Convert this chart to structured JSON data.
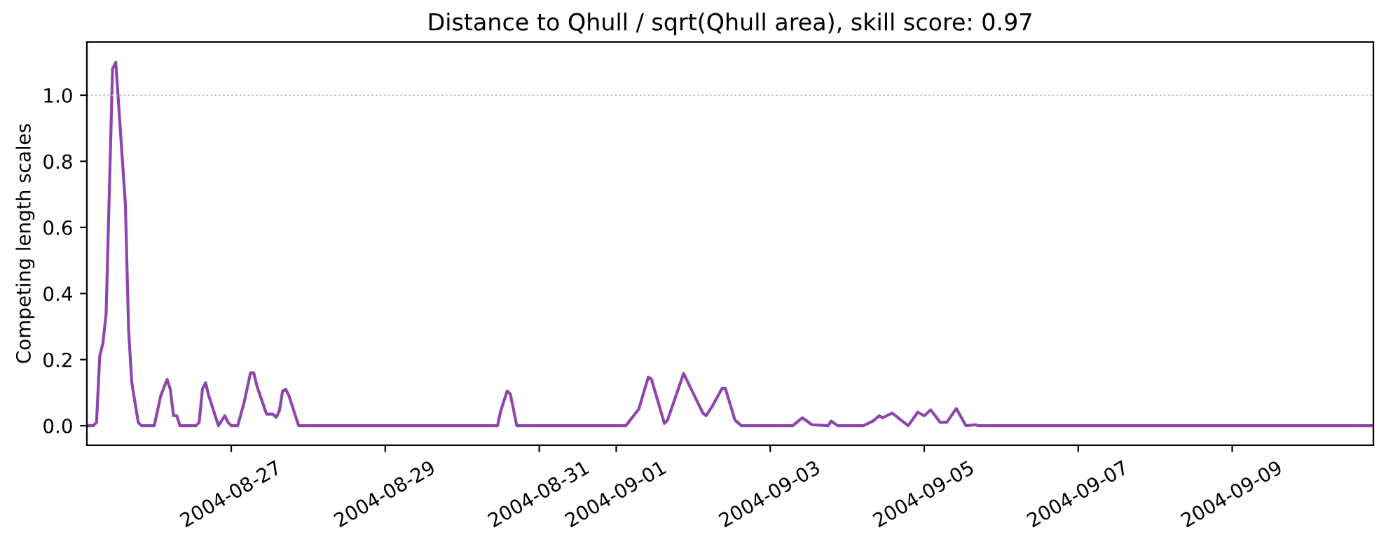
{
  "chart_data": {
    "type": "line",
    "title": "Distance to Qhull / sqrt(Qhull area), skill score: 0.97",
    "ylabel": "Competing length scales",
    "x": [
      "2004-08-25T03:00",
      "2004-08-25T05:00",
      "2004-08-25T06:00",
      "2004-08-25T07:00",
      "2004-08-25T08:00",
      "2004-08-25T09:00",
      "2004-08-25T11:00",
      "2004-08-25T12:00",
      "2004-08-25T15:00",
      "2004-08-25T16:00",
      "2004-08-25T17:00",
      "2004-08-25T19:00",
      "2004-08-25T20:00",
      "2004-08-26T00:00",
      "2004-08-26T02:00",
      "2004-08-26T04:00",
      "2004-08-26T05:00",
      "2004-08-26T06:00",
      "2004-08-26T07:00",
      "2004-08-26T08:00",
      "2004-08-26T13:00",
      "2004-08-26T14:00",
      "2004-08-26T15:00",
      "2004-08-26T16:00",
      "2004-08-26T17:00",
      "2004-08-26T20:00",
      "2004-08-26T22:00",
      "2004-08-26T23:00",
      "2004-08-27T00:00",
      "2004-08-27T02:00",
      "2004-08-27T04:00",
      "2004-08-27T06:00",
      "2004-08-27T07:00",
      "2004-08-27T08:00",
      "2004-08-27T11:00",
      "2004-08-27T13:00",
      "2004-08-27T14:00",
      "2004-08-27T15:00",
      "2004-08-27T16:00",
      "2004-08-27T17:00",
      "2004-08-27T18:00",
      "2004-08-27T21:00",
      "2004-08-30T11:00",
      "2004-08-30T12:00",
      "2004-08-30T14:00",
      "2004-08-30T15:00",
      "2004-08-30T17:00",
      "2004-09-01T03:00",
      "2004-09-01T07:00",
      "2004-09-01T10:00",
      "2004-09-01T11:00",
      "2004-09-01T15:00",
      "2004-09-01T16:00",
      "2004-09-01T21:00",
      "2004-09-02T03:00",
      "2004-09-02T04:00",
      "2004-09-02T06:00",
      "2004-09-02T09:00",
      "2004-09-02T10:00",
      "2004-09-02T13:00",
      "2004-09-02T15:00",
      "2004-09-03T07:00",
      "2004-09-03T10:00",
      "2004-09-03T13:00",
      "2004-09-03T18:00",
      "2004-09-03T19:00",
      "2004-09-03T21:00",
      "2004-09-04T05:00",
      "2004-09-04T08:00",
      "2004-09-04T10:00",
      "2004-09-04T11:00",
      "2004-09-04T14:00",
      "2004-09-04T19:00",
      "2004-09-04T22:00",
      "2004-09-05T00:00",
      "2004-09-05T02:00",
      "2004-09-05T05:00",
      "2004-09-05T07:00",
      "2004-09-05T08:00",
      "2004-09-05T10:00",
      "2004-09-05T13:00",
      "2004-09-05T16:00",
      "2004-09-05T17:00",
      "2004-09-10T20:00"
    ],
    "series": [
      {
        "color": "#8e44ad",
        "values": [
          0,
          0,
          0.01,
          0.21,
          0.25,
          0.34,
          1.08,
          1.1,
          0.67,
          0.29,
          0.13,
          0.01,
          0,
          0,
          0.09,
          0.14,
          0.11,
          0.03,
          0.03,
          0,
          0,
          0.01,
          0.11,
          0.13,
          0.09,
          0,
          0.03,
          0.01,
          0,
          0,
          0.07,
          0.16,
          0.16,
          0.12,
          0.035,
          0.035,
          0.025,
          0.045,
          0.105,
          0.11,
          0.09,
          0,
          0,
          0.045,
          0.105,
          0.095,
          0,
          0,
          0.05,
          0.147,
          0.14,
          0.007,
          0.017,
          0.158,
          0.038,
          0.03,
          0.06,
          0.113,
          0.113,
          0.017,
          0,
          0,
          0.024,
          0.003,
          0,
          0.014,
          0,
          0,
          0.014,
          0.03,
          0.024,
          0.038,
          0,
          0.041,
          0.03,
          0.048,
          0.01,
          0.01,
          0.024,
          0.052,
          0,
          0.003,
          0,
          0
        ]
      }
    ],
    "xlim": [
      "2004-08-25T03:00",
      "2004-09-10T20:00"
    ],
    "xticks": [
      "2004-08-27",
      "2004-08-29",
      "2004-08-31",
      "2004-09-01",
      "2004-09-03",
      "2004-09-05",
      "2004-09-07",
      "2004-09-09"
    ],
    "ylim": [
      -0.059,
      1.161
    ],
    "yticks": [
      {
        "value": 0,
        "label": "0.0"
      },
      {
        "value": 0.2,
        "label": "0.2"
      },
      {
        "value": 0.4,
        "label": "0.4"
      },
      {
        "value": 0.6,
        "label": "0.6"
      },
      {
        "value": 0.8,
        "label": "0.8"
      },
      {
        "value": 1.0,
        "label": "1.0"
      }
    ],
    "ref_lines": [
      {
        "axis": "y",
        "value": 1.0,
        "color": "#bbbbbb",
        "line_style": "dotted"
      }
    ],
    "grid": false,
    "marker": "none",
    "line_style": "solid"
  }
}
